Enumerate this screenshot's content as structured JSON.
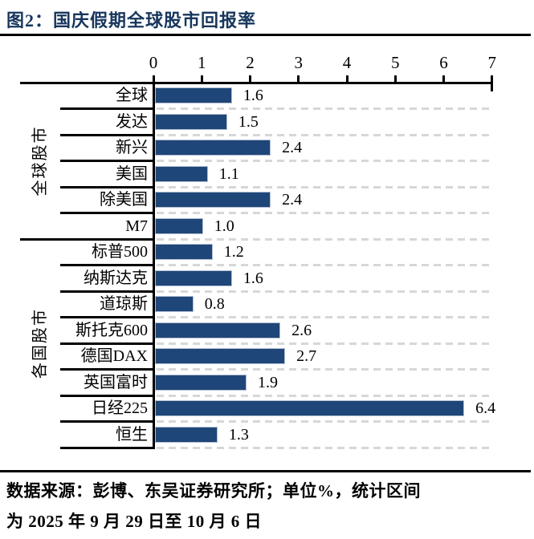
{
  "header": {
    "title": "图2：国庆假期全球股市回报率"
  },
  "colors": {
    "title_navy": "#17365D",
    "bar_fill": "#1F4678",
    "grid_dash": "#D7D7D7",
    "line_black": "#000000"
  },
  "chart_data": {
    "type": "bar",
    "orientation": "horizontal",
    "title": "国庆假期全球股市回报率",
    "unit": "%",
    "xlim": [
      0,
      7
    ],
    "x_ticks": [
      "0",
      "1",
      "2",
      "3",
      "4",
      "5",
      "6",
      "7"
    ],
    "grid": "dashed-horizontal-row-separators",
    "groups": [
      {
        "label": "全球股市",
        "items": [
          {
            "label": "全球",
            "value": 1.6,
            "display": "1.6"
          },
          {
            "label": "发达",
            "value": 1.5,
            "display": "1.5"
          },
          {
            "label": "新兴",
            "value": 2.4,
            "display": "2.4"
          },
          {
            "label": "美国",
            "value": 1.1,
            "display": "1.1"
          },
          {
            "label": "除美国",
            "value": 2.4,
            "display": "2.4"
          },
          {
            "label": "M7",
            "value": 1.0,
            "display": "1.0"
          }
        ]
      },
      {
        "label": "各国股市",
        "items": [
          {
            "label": "标普500",
            "value": 1.2,
            "display": "1.2"
          },
          {
            "label": "纳斯达克",
            "value": 1.6,
            "display": "1.6"
          },
          {
            "label": "道琼斯",
            "value": 0.8,
            "display": "0.8"
          },
          {
            "label": "斯托克600",
            "value": 2.6,
            "display": "2.6"
          },
          {
            "label": "德国DAX",
            "value": 2.7,
            "display": "2.7"
          },
          {
            "label": "英国富时",
            "value": 1.9,
            "display": "1.9"
          },
          {
            "label": "日经225",
            "value": 6.4,
            "display": "6.4"
          },
          {
            "label": "恒生",
            "value": 1.3,
            "display": "1.3"
          }
        ]
      }
    ]
  },
  "footer": {
    "line1": "数据来源：彭博、东吴证券研究所；单位%，统计区间",
    "line2": "为 2025 年 9 月 29 日至 10 月 6 日"
  }
}
